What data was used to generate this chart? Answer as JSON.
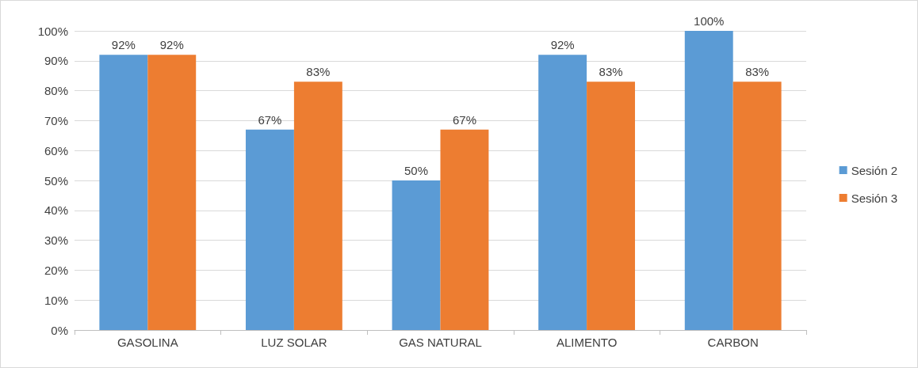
{
  "chart_data": {
    "type": "bar",
    "categories": [
      "GASOLINA",
      "LUZ SOLAR",
      "GAS NATURAL",
      "ALIMENTO",
      "CARBON"
    ],
    "series": [
      {
        "name": "Sesión 2",
        "color": "#5b9bd5",
        "values": [
          92,
          67,
          50,
          92,
          100
        ],
        "value_labels": [
          "92%",
          "67%",
          "50%",
          "92%",
          "100%"
        ]
      },
      {
        "name": "Sesión 3",
        "color": "#ed7d31",
        "values": [
          92,
          83,
          67,
          83,
          83
        ],
        "value_labels": [
          "92%",
          "83%",
          "67%",
          "83%",
          "83%"
        ]
      }
    ],
    "ylim": [
      0,
      100
    ],
    "yticks": [
      {
        "value": 0,
        "label": "0%"
      },
      {
        "value": 10,
        "label": "10%"
      },
      {
        "value": 20,
        "label": "20%"
      },
      {
        "value": 30,
        "label": "30%"
      },
      {
        "value": 40,
        "label": "40%"
      },
      {
        "value": 50,
        "label": "50%"
      },
      {
        "value": 60,
        "label": "60%"
      },
      {
        "value": 70,
        "label": "70%"
      },
      {
        "value": 80,
        "label": "80%"
      },
      {
        "value": 90,
        "label": "90%"
      },
      {
        "value": 100,
        "label": "100%"
      }
    ],
    "grid": "y",
    "legend": "right"
  }
}
